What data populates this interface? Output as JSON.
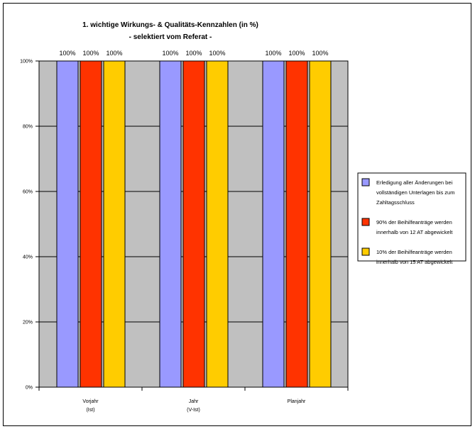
{
  "chart_data": {
    "type": "bar",
    "title": "1. wichtige Wirkungs- & Qualitäts-Kennzahlen (in %)",
    "subtitle": "- selektiert vom Referat -",
    "categories": [
      [
        "Vorjahr",
        "(Ist)"
      ],
      [
        "Jahr",
        "(V-Ist)"
      ],
      [
        "Planjahr"
      ]
    ],
    "series": [
      {
        "name": "Erledigung aller Änderungen bei vollständigen Unterlagen bis zum Zahltagsschluss",
        "legend_lines": [
          "Erledigung aller Änderungen bei",
          "vollständigen Unterlagen bis zum",
          "Zahltagsschluss"
        ],
        "color": "#9999ff",
        "values": [
          100,
          100,
          100
        ],
        "labels": [
          "100%",
          "100%",
          "100%"
        ]
      },
      {
        "name": "90% der Beihilfeanträge werden innerhalb von 12 AT abgewickelt",
        "legend_lines": [
          "90% der Beihilfeanträge werden",
          "innerhalb von 12 AT abgewickelt"
        ],
        "color": "#ff3300",
        "values": [
          100,
          100,
          100
        ],
        "labels": [
          "100%",
          "100%",
          "100%"
        ]
      },
      {
        "name": "10% der Beihilfeanträge werden innerhalb von 15 AT abgewickelt",
        "legend_lines": [
          "10% der Beihilfeanträge werden",
          "innerhalb von 15 AT abgewickelt"
        ],
        "color": "#ffcc00",
        "values": [
          100,
          100,
          100
        ],
        "labels": [
          "100%",
          "100%",
          "100%"
        ]
      }
    ],
    "y_ticks": [
      "0%",
      "20%",
      "40%",
      "60%",
      "80%",
      "100%"
    ],
    "ylim": [
      0,
      100
    ],
    "grid": true,
    "plot_background": "#c0c0c0",
    "legend_position": "right"
  }
}
